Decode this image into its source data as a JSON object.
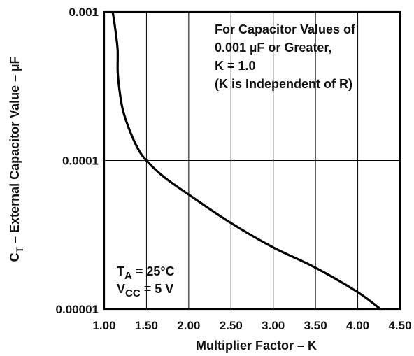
{
  "chart_data": {
    "type": "line",
    "title": "",
    "xlabel": "Multiplier Factor – K",
    "ylabel": {
      "main": "C",
      "sub": "T",
      "rest": " – External Capacitor Value – µF"
    },
    "xlim": [
      1.0,
      4.5
    ],
    "ylim": [
      1e-05,
      0.001
    ],
    "yscale": "log",
    "grid": true,
    "x_ticks": [
      "1.00",
      "1.50",
      "2.00",
      "2.50",
      "3.00",
      "3.50",
      "4.00",
      "4.50"
    ],
    "y_ticks": [
      "0.00001",
      "0.0001",
      "0.001"
    ],
    "series": [
      {
        "color": "#000000",
        "points": [
          [
            1.1,
            0.001
          ],
          [
            1.12,
            0.00085
          ],
          [
            1.14,
            0.0007
          ],
          [
            1.16,
            0.00055
          ],
          [
            1.16,
            0.0004
          ],
          [
            1.18,
            0.0003
          ],
          [
            1.22,
            0.00022
          ],
          [
            1.3,
            0.00016
          ],
          [
            1.4,
            0.00012
          ],
          [
            1.5,
            0.0001
          ],
          [
            1.7,
            7.8e-05
          ],
          [
            2.0,
            5.9e-05
          ],
          [
            2.5,
            3.8e-05
          ],
          [
            3.0,
            2.6e-05
          ],
          [
            3.5,
            1.9e-05
          ],
          [
            4.0,
            1.3e-05
          ],
          [
            4.27,
            1e-05
          ]
        ]
      }
    ],
    "annotations": {
      "top_note": [
        "For Capacitor Values of",
        "0.001 µF or Greater,",
        "K = 1.0",
        "(K is Independent of R)"
      ],
      "conditions": [
        {
          "main": "T",
          "sub": "A",
          "rest": " = 25°C"
        },
        {
          "main": "V",
          "sub": "CC",
          "rest": " = 5 V"
        }
      ]
    }
  }
}
